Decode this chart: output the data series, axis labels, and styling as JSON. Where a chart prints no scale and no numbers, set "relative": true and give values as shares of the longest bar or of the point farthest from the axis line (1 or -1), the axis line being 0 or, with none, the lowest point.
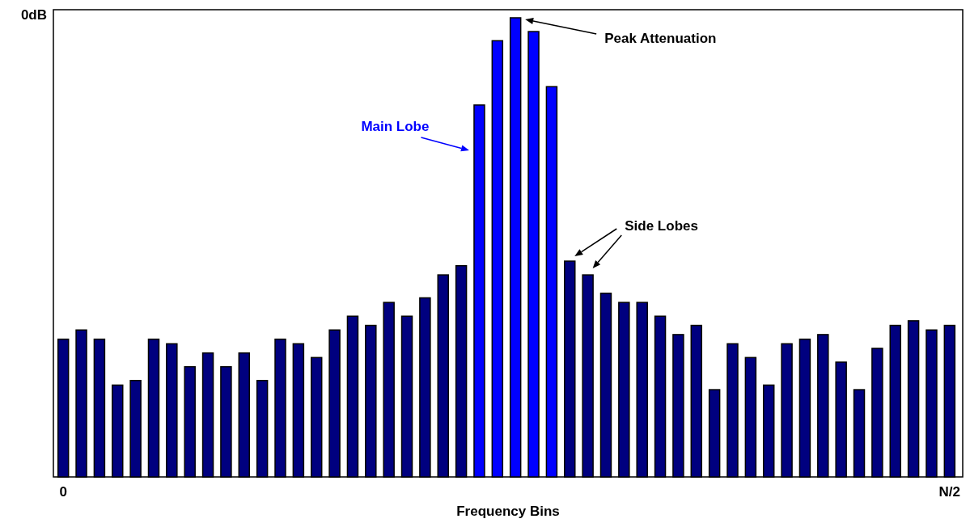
{
  "chart_data": {
    "type": "bar",
    "relative": true,
    "xlabel": "Frequency Bins",
    "categories": [
      "0",
      null,
      null,
      null,
      null,
      null,
      null,
      null,
      null,
      null,
      null,
      null,
      null,
      null,
      null,
      null,
      null,
      null,
      null,
      null,
      null,
      null,
      null,
      null,
      null,
      null,
      null,
      null,
      null,
      null,
      null,
      null,
      null,
      null,
      null,
      null,
      null,
      null,
      null,
      null,
      null,
      null,
      null,
      null,
      null,
      null,
      null,
      null,
      null,
      "N/2"
    ],
    "values": [
      0.3,
      0.32,
      0.3,
      0.2,
      0.21,
      0.3,
      0.29,
      0.24,
      0.27,
      0.24,
      0.27,
      0.21,
      0.3,
      0.29,
      0.26,
      0.32,
      0.35,
      0.33,
      0.38,
      0.35,
      0.39,
      0.44,
      0.46,
      0.81,
      0.95,
      1,
      0.97,
      0.85,
      0.47,
      0.44,
      0.4,
      0.38,
      0.38,
      0.35,
      0.31,
      0.33,
      0.19,
      0.29,
      0.26,
      0.2,
      0.29,
      0.3,
      0.31,
      0.25,
      0.19,
      0.28,
      0.33,
      0.34,
      0.32,
      0.33
    ],
    "colors": [
      "#00007f",
      "#00007f",
      "#00007f",
      "#00007f",
      "#00007f",
      "#00007f",
      "#00007f",
      "#00007f",
      "#00007f",
      "#00007f",
      "#00007f",
      "#00007f",
      "#00007f",
      "#00007f",
      "#00007f",
      "#00007f",
      "#00007f",
      "#00007f",
      "#00007f",
      "#00007f",
      "#00007f",
      "#00007f",
      "#00007f",
      "#0000ff",
      "#0000ff",
      "#0000ff",
      "#0000ff",
      "#0000ff",
      "#00007f",
      "#00007f",
      "#00007f",
      "#00007f",
      "#00007f",
      "#00007f",
      "#00007f",
      "#00007f",
      "#00007f",
      "#00007f",
      "#00007f",
      "#00007f",
      "#00007f",
      "#00007f",
      "#00007f",
      "#00007f",
      "#00007f",
      "#00007f",
      "#00007f",
      "#00007f",
      "#00007f",
      "#00007f"
    ],
    "annotations": [
      "0dB",
      "Main Lobe",
      "Peak Attenuation",
      "Side Lobes"
    ]
  }
}
